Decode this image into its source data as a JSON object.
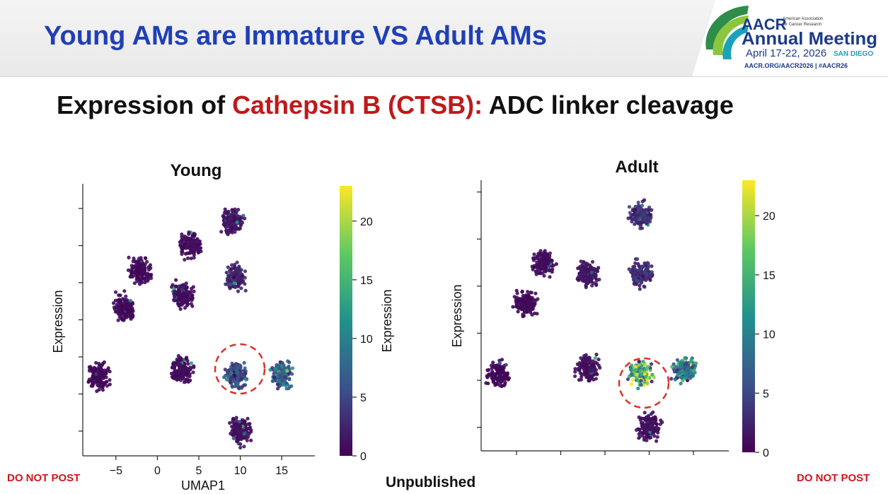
{
  "slide": {
    "title": "Young AMs are Immature VS Adult AMs",
    "subtitle_part1": "Expression of ",
    "subtitle_highlight": "Cathepsin B (CTSB):",
    "subtitle_part2": " ADC linker cleavage",
    "footer_left": "DO NOT POST",
    "footer_center": "Unpublished",
    "footer_right": "DO NOT POST"
  },
  "logo": {
    "org_short": "AACR",
    "org_full_line1": "American Association",
    "org_full_line2": "for Cancer Research",
    "event": "Annual Meeting",
    "dates": "April 17-22, 2026",
    "city": "SAN DIEGO",
    "links": "AACR.ORG/AACR2026 | #AACR26"
  },
  "colors": {
    "title_blue": "#1f3fb8",
    "highlight_red": "#c0191c",
    "warning_red": "#d4141c",
    "circle_red": "#d9342b",
    "viridis_low": "#440154",
    "viridis_high": "#fde725"
  },
  "chart_data": [
    {
      "type": "scatter",
      "title": "Young",
      "xlabel": "UMAP1",
      "ylabel": "Expression",
      "xticks": [
        "−5",
        "0",
        "5",
        "10",
        "15"
      ],
      "colorbar": {
        "label": "Expression",
        "ticks": [
          "0",
          "5",
          "10",
          "15",
          "20"
        ],
        "range": [
          0,
          23
        ]
      },
      "clusters": [
        {
          "x": -7,
          "y": -3.5,
          "level": 0.5
        },
        {
          "x": -4,
          "y": 2,
          "level": 0.6
        },
        {
          "x": -2,
          "y": 5,
          "level": 0.6
        },
        {
          "x": 3,
          "y": 3,
          "level": 0.8
        },
        {
          "x": 4,
          "y": 7,
          "level": 0.9
        },
        {
          "x": 9.5,
          "y": 4.5,
          "level": 2.5
        },
        {
          "x": 9,
          "y": 9,
          "level": 1.5
        },
        {
          "x": 3,
          "y": -3,
          "level": 0.8
        },
        {
          "x": 9.5,
          "y": -3.5,
          "level": 5
        },
        {
          "x": 15,
          "y": -3.5,
          "level": 7
        },
        {
          "x": 10,
          "y": -8,
          "level": 1
        }
      ],
      "highlight": {
        "shape": "dashed-circle",
        "x": 9.5,
        "y": -3.5
      }
    },
    {
      "type": "scatter",
      "title": "Adult",
      "xlabel": "",
      "ylabel": "Expression",
      "xticks": [],
      "colorbar": {
        "label": "",
        "ticks": [
          "0",
          "5",
          "10",
          "15",
          "20"
        ],
        "range": [
          0,
          23
        ]
      },
      "clusters": [
        {
          "x": -7,
          "y": -3.5,
          "level": 0.5
        },
        {
          "x": -4,
          "y": 2.5,
          "level": 0.6
        },
        {
          "x": -2,
          "y": 6,
          "level": 0.8
        },
        {
          "x": 3,
          "y": 5,
          "level": 1.5
        },
        {
          "x": 9,
          "y": 5,
          "level": 3
        },
        {
          "x": 9,
          "y": 10,
          "level": 3
        },
        {
          "x": 3,
          "y": -3,
          "level": 1
        },
        {
          "x": 9,
          "y": -3.5,
          "level": 14
        },
        {
          "x": 14,
          "y": -3,
          "level": 9
        },
        {
          "x": 10,
          "y": -8,
          "level": 1
        }
      ],
      "highlight": {
        "shape": "dashed-circle",
        "x": 9,
        "y": -3.5
      }
    }
  ]
}
